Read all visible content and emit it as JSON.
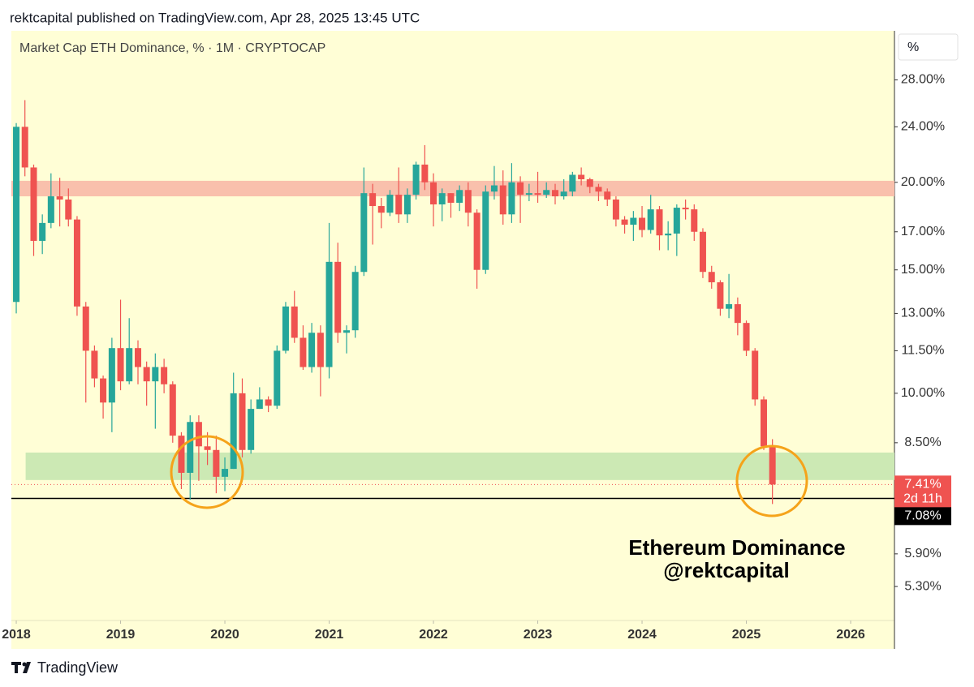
{
  "chart_data": {
    "type": "candlestick",
    "title": "rektcapital published on TradingView.com, Apr 28, 2025 13:45 UTC",
    "subtitle": "Market Cap ETH Dominance, % · 1M · CRYPTOCAP",
    "y_unit": "%",
    "brand": "TradingView",
    "log_scale": true,
    "up_color": "#26a69a",
    "down_color": "#ef5350",
    "background": "#fffed6",
    "x": [
      2018,
      2018.083,
      2018.167,
      2018.25,
      2018.333,
      2018.417,
      2018.5,
      2018.583,
      2018.667,
      2018.75,
      2018.833,
      2018.917,
      2019,
      2019.083,
      2019.167,
      2019.25,
      2019.333,
      2019.417,
      2019.5,
      2019.583,
      2019.667,
      2019.75,
      2019.833,
      2019.917,
      2020,
      2020.083,
      2020.167,
      2020.25,
      2020.333,
      2020.417,
      2020.5,
      2020.583,
      2020.667,
      2020.75,
      2020.833,
      2020.917,
      2021,
      2021.083,
      2021.167,
      2021.25,
      2021.333,
      2021.417,
      2021.5,
      2021.583,
      2021.667,
      2021.75,
      2021.833,
      2021.917,
      2022,
      2022.083,
      2022.167,
      2022.25,
      2022.333,
      2022.417,
      2022.5,
      2022.583,
      2022.667,
      2022.75,
      2022.833,
      2022.917,
      2023,
      2023.083,
      2023.167,
      2023.25,
      2023.333,
      2023.417,
      2023.5,
      2023.583,
      2023.667,
      2023.75,
      2023.833,
      2023.917,
      2024,
      2024.083,
      2024.167,
      2024.25,
      2024.333,
      2024.417,
      2024.5,
      2024.583,
      2024.667,
      2024.75,
      2024.833,
      2024.917,
      2025,
      2025.083,
      2025.167,
      2025.25
    ],
    "open": [
      13.5,
      24.0,
      21.0,
      16.5,
      17.5,
      19.1,
      18.9,
      17.7,
      13.3,
      11.5,
      10.5,
      9.7,
      11.6,
      10.4,
      11.6,
      10.9,
      10.4,
      10.9,
      10.3,
      8.7,
      7.7,
      9.1,
      8.4,
      8.3,
      7.6,
      7.8,
      10.0,
      8.3,
      9.5,
      9.8,
      9.6,
      11.5,
      13.3,
      12.0,
      10.9,
      12.2,
      10.9,
      15.4,
      12.2,
      12.3,
      14.9,
      19.3,
      18.5,
      18.1,
      19.2,
      18.0,
      19.2,
      21.2,
      20.0,
      18.6,
      19.3,
      18.7,
      19.5,
      18.1,
      15.0,
      19.4,
      19.8,
      18.0,
      20.0,
      19.2,
      19.3,
      19.2,
      19.5,
      19.1,
      19.4,
      20.5,
      20.2,
      19.7,
      19.4,
      18.9,
      17.7,
      17.4,
      17.8,
      17.1,
      18.3,
      16.8,
      16.9,
      18.4,
      18.3,
      17.0,
      14.9,
      14.4,
      13.2,
      13.4,
      12.6,
      11.5,
      9.8,
      8.4
    ],
    "high": [
      24.3,
      26.2,
      21.2,
      18.0,
      20.6,
      20.3,
      19.6,
      17.9,
      13.5,
      11.7,
      10.6,
      12.0,
      13.6,
      12.8,
      11.9,
      11.1,
      11.4,
      11.2,
      10.4,
      8.8,
      9.3,
      9.3,
      8.8,
      8.7,
      8.1,
      10.7,
      10.5,
      9.8,
      10.2,
      9.9,
      11.7,
      13.5,
      14.0,
      12.5,
      12.6,
      12.5,
      17.5,
      16.4,
      12.5,
      15.2,
      21.0,
      19.9,
      19.0,
      19.5,
      21.0,
      19.6,
      21.4,
      22.6,
      20.6,
      19.6,
      19.3,
      19.8,
      20.0,
      18.3,
      19.8,
      21.1,
      20.8,
      21.3,
      20.4,
      19.9,
      20.7,
      20.0,
      19.9,
      20.2,
      20.7,
      21.0,
      20.3,
      19.9,
      19.6,
      19.1,
      17.9,
      18.2,
      18.5,
      19.2,
      18.5,
      17.6,
      18.6,
      18.9,
      18.6,
      17.2,
      15.2,
      14.5,
      14.8,
      13.7,
      12.7,
      11.6,
      9.9,
      8.6
    ],
    "low": [
      13.0,
      20.4,
      15.7,
      15.8,
      17.2,
      17.3,
      17.3,
      12.9,
      9.7,
      10.2,
      9.2,
      8.8,
      10.1,
      10.3,
      10.3,
      9.6,
      8.9,
      10.0,
      8.5,
      7.3,
      7.05,
      7.5,
      7.9,
      7.2,
      7.25,
      7.8,
      8.1,
      8.2,
      9.5,
      9.4,
      9.5,
      11.4,
      11.8,
      10.8,
      10.7,
      9.9,
      10.5,
      11.8,
      11.4,
      12.0,
      14.7,
      16.3,
      17.2,
      17.9,
      17.5,
      17.5,
      18.9,
      19.5,
      17.3,
      17.6,
      17.8,
      18.2,
      17.3,
      14.1,
      14.8,
      18.9,
      17.4,
      17.5,
      17.5,
      18.8,
      18.7,
      19.0,
      18.6,
      18.9,
      19.1,
      19.8,
      19.3,
      18.8,
      18.5,
      17.3,
      16.9,
      16.5,
      16.7,
      16.9,
      16.0,
      16.0,
      15.7,
      17.7,
      16.5,
      14.6,
      14.1,
      12.9,
      12.8,
      12.1,
      11.3,
      9.6,
      8.3,
      6.95
    ],
    "close": [
      24.0,
      21.0,
      16.5,
      17.5,
      19.1,
      18.9,
      17.7,
      13.3,
      11.5,
      10.5,
      9.7,
      11.6,
      10.4,
      11.6,
      10.9,
      10.4,
      10.9,
      10.3,
      8.7,
      7.7,
      9.1,
      8.4,
      8.3,
      7.6,
      7.8,
      10.0,
      8.3,
      9.5,
      9.8,
      9.6,
      11.5,
      13.3,
      12.0,
      10.9,
      12.2,
      10.9,
      15.4,
      12.2,
      12.3,
      14.9,
      19.3,
      18.5,
      18.1,
      19.2,
      18.0,
      19.2,
      21.2,
      20.0,
      18.6,
      19.3,
      18.7,
      19.5,
      18.1,
      15.0,
      19.4,
      19.8,
      18.0,
      20.0,
      19.2,
      19.3,
      19.2,
      19.5,
      19.1,
      19.4,
      20.5,
      20.2,
      19.7,
      19.4,
      18.9,
      17.7,
      17.4,
      17.8,
      17.1,
      18.3,
      16.8,
      16.9,
      18.4,
      18.3,
      17.0,
      14.9,
      14.4,
      13.2,
      13.4,
      12.6,
      11.5,
      9.8,
      8.4,
      7.41
    ],
    "xlim": [
      2017.953,
      2026.42
    ],
    "xticks": [
      2018,
      2019,
      2020,
      2021,
      2022,
      2023,
      2024,
      2025,
      2026
    ],
    "ylim": [
      4.74,
      32.9
    ],
    "yticks": [
      {
        "value": 28,
        "label": "28.00%"
      },
      {
        "value": 24,
        "label": "24.00%"
      },
      {
        "value": 20,
        "label": "20.00%"
      },
      {
        "value": 17,
        "label": "17.00%"
      },
      {
        "value": 15,
        "label": "15.00%"
      },
      {
        "value": 13,
        "label": "13.00%"
      },
      {
        "value": 11.5,
        "label": "11.50%"
      },
      {
        "value": 10,
        "label": "10.00%"
      },
      {
        "value": 8.5,
        "label": "8.50%"
      },
      {
        "value": 5.9,
        "label": "5.90%"
      },
      {
        "value": 5.3,
        "label": "5.30%"
      }
    ],
    "zones": [
      {
        "from": 19.1,
        "to": 20.1,
        "x_start": 2017.953,
        "color": "#f9c0ac"
      },
      {
        "from": 7.52,
        "to": 8.23,
        "x_start": 2018.09,
        "color": "#cce9b4"
      }
    ],
    "last_price": {
      "value": 7.41,
      "label": "7.41%",
      "countdown": "2d 11h",
      "color": "#ef5350"
    },
    "hline": {
      "value": 7.08,
      "label": "7.08%",
      "color": "#000000"
    },
    "annotations": [
      "Ethereum Dominance",
      "@rektcapital"
    ]
  }
}
